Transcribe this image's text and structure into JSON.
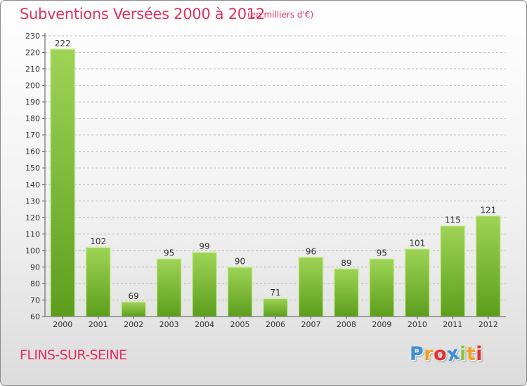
{
  "header": {
    "title": "Subventions Versées 2000 à 2012",
    "unit": "(en milliers d'€)"
  },
  "footer": {
    "town": "FLINS-SUR-SEINE",
    "logo_letters": [
      "P",
      "r",
      "o",
      "x",
      "i",
      "t",
      "i"
    ],
    "logo_colors": [
      "#3a8fd8",
      "#f0a020",
      "#e23030",
      "#3a8fd8",
      "#8ac43c",
      "#f0a020",
      "#e23030"
    ]
  },
  "colors": {
    "title": "#e0315d",
    "bar_light": "#9fd456",
    "bar_dark": "#5c9e1c",
    "grid": "#b8b8b8"
  },
  "chart_data": {
    "type": "bar",
    "title": "Subventions Versées 2000 à 2012",
    "subtitle": "(en milliers d'€)",
    "xlabel": "",
    "ylabel": "",
    "categories": [
      "2000",
      "2001",
      "2002",
      "2003",
      "2004",
      "2005",
      "2006",
      "2007",
      "2008",
      "2009",
      "2010",
      "2011",
      "2012"
    ],
    "values": [
      222,
      102,
      69,
      95,
      99,
      90,
      71,
      96,
      89,
      95,
      101,
      115,
      121
    ],
    "ylim": [
      60,
      230
    ],
    "ytick_step": 10,
    "grid": true,
    "data_labels": true
  }
}
